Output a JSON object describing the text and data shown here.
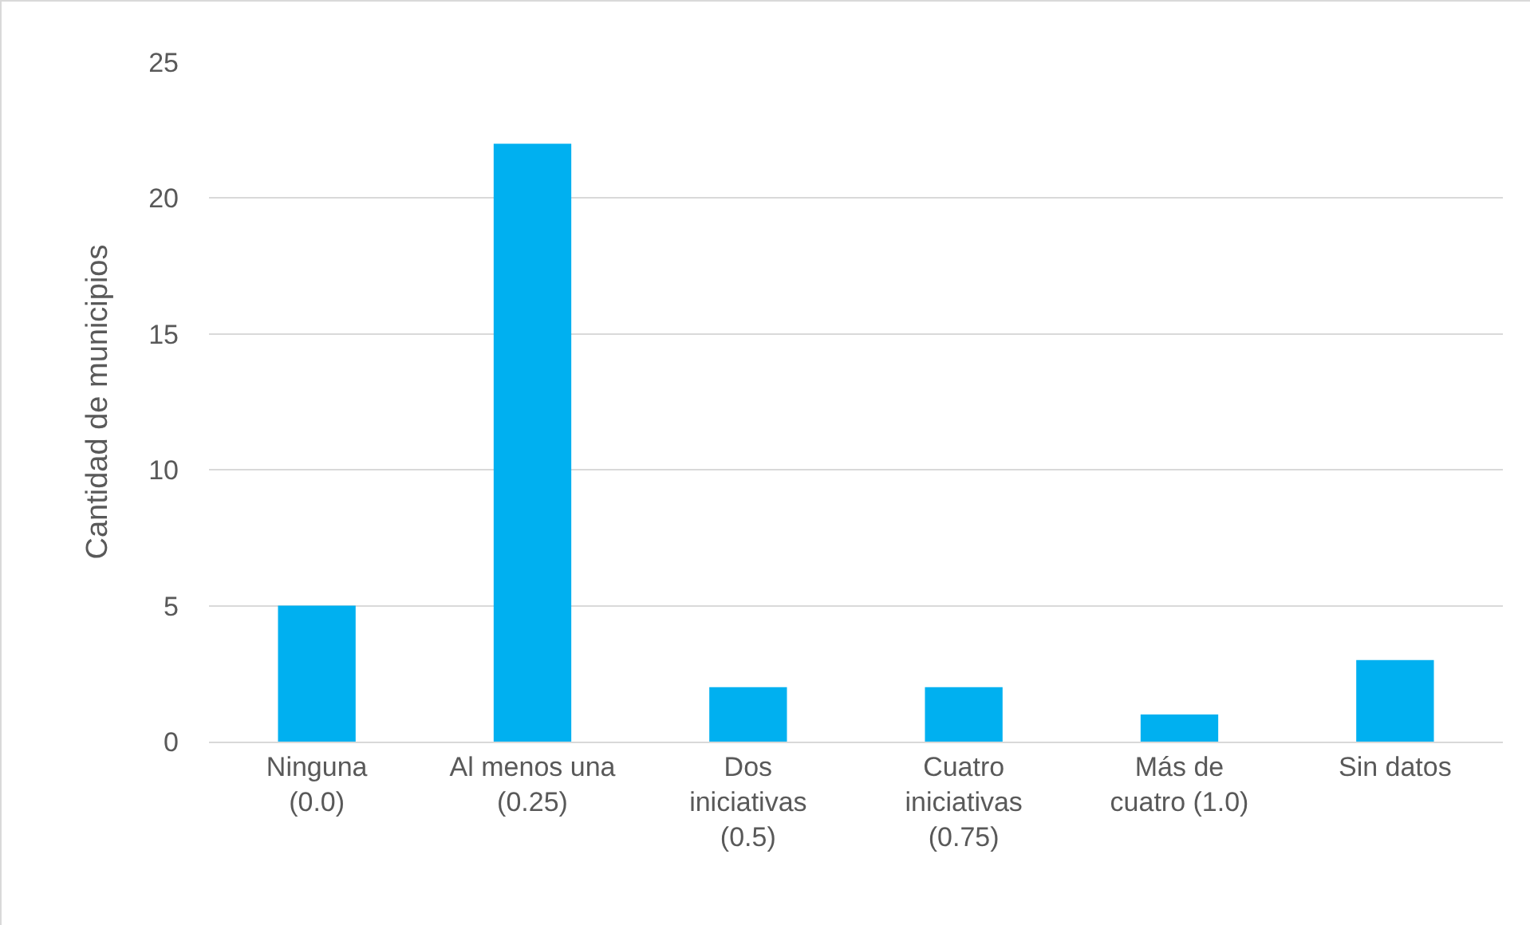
{
  "chart_data": {
    "type": "bar",
    "ylabel": "Cantidad de municipios",
    "categories": [
      "Ninguna (0.0)",
      "Al menos una (0.25)",
      "Dos iniciativas (0.5)",
      "Cuatro iniciativas (0.75)",
      "Más de cuatro (1.0)",
      "Sin datos"
    ],
    "values": [
      5,
      22,
      2,
      2,
      1,
      3
    ],
    "color": "#00b0f0",
    "ylim": [
      0,
      25
    ],
    "yticks": [
      0,
      5,
      10,
      15,
      20,
      25
    ],
    "grid": "y",
    "legend": false
  }
}
